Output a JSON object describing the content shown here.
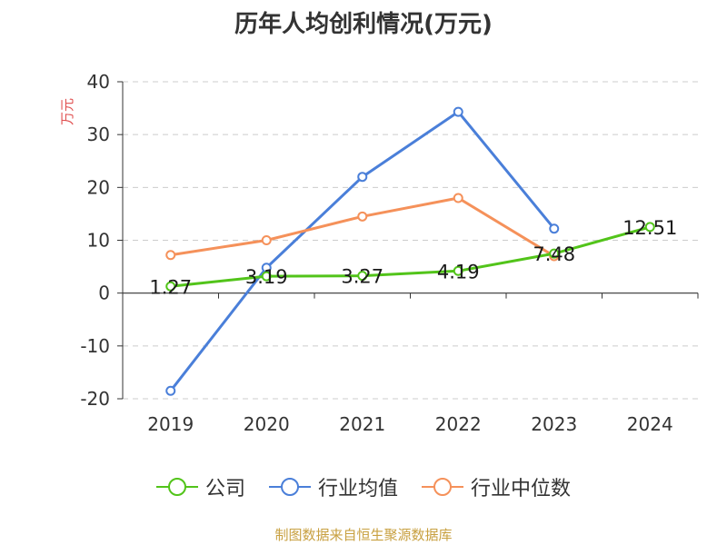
{
  "chart_data": {
    "type": "line",
    "title": "历年人均创利情况(万元)",
    "ylabel": "万元",
    "xlabel": "",
    "categories": [
      "2019",
      "2020",
      "2021",
      "2022",
      "2023",
      "2024"
    ],
    "ylim": [
      -20,
      40
    ],
    "yticks": [
      "40",
      "30",
      "20",
      "10",
      "0",
      "-10",
      "-20"
    ],
    "grid": true,
    "legend_position": "bottom",
    "series": [
      {
        "name": "公司",
        "color": "#52c41a",
        "values": [
          1.27,
          3.19,
          3.27,
          4.19,
          7.48,
          12.51
        ],
        "labels": [
          "1.27",
          "3.19",
          "3.27",
          "4.19",
          "7.48",
          "12.51"
        ]
      },
      {
        "name": "行业均值",
        "color": "#4a7fd9",
        "values": [
          -18.5,
          4.8,
          22.0,
          34.3,
          12.2,
          null
        ]
      },
      {
        "name": "行业中位数",
        "color": "#f5915a",
        "values": [
          7.2,
          10.0,
          14.5,
          18.0,
          7.0,
          null
        ]
      }
    ]
  },
  "source": "制图数据来自恒生聚源数据库"
}
